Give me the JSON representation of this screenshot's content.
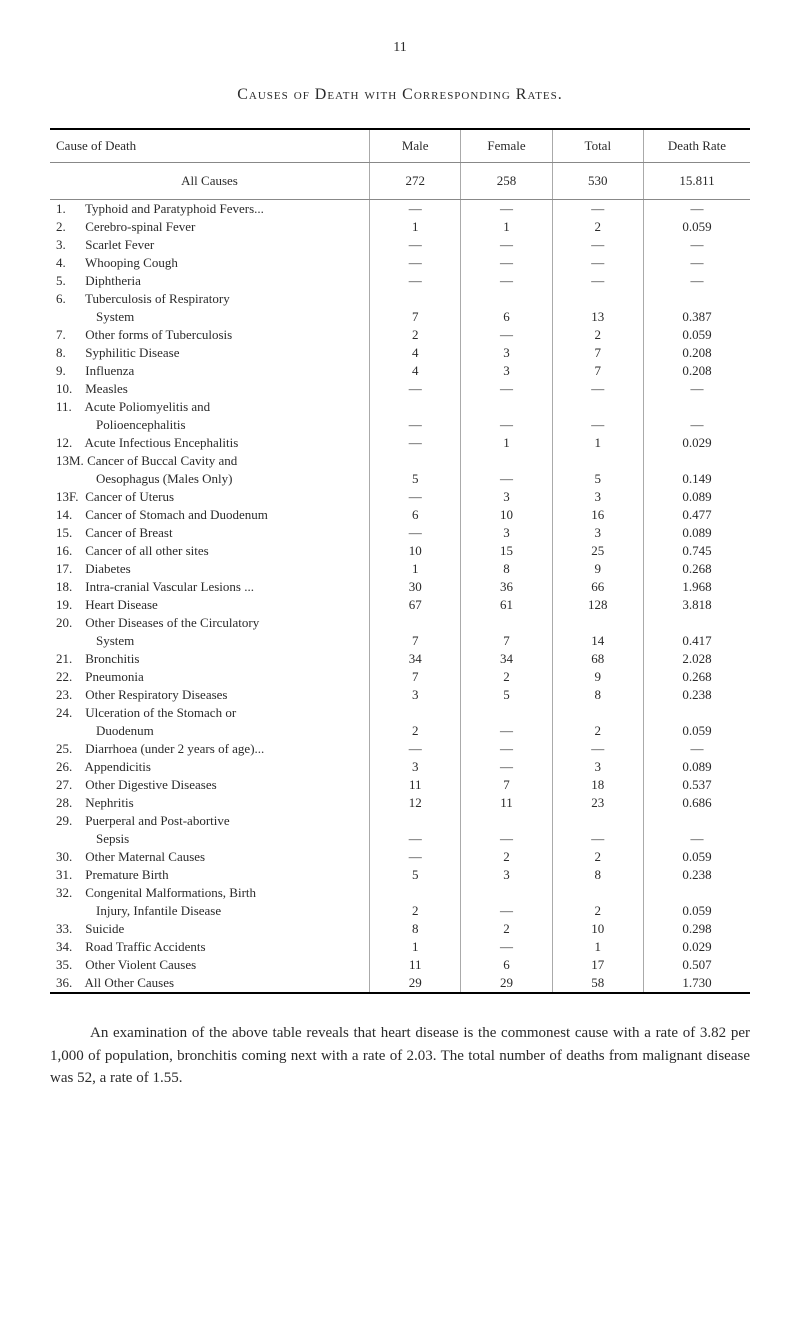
{
  "pageNumber": "11",
  "title": "Causes of Death with Corresponding Rates.",
  "headers": {
    "cause": "Cause of Death",
    "male": "Male",
    "female": "Female",
    "total": "Total",
    "rate": "Death Rate"
  },
  "allCauses": {
    "label": "All Causes",
    "male": "272",
    "female": "258",
    "total": "530",
    "rate": "15.811"
  },
  "rows": [
    {
      "num": "1.",
      "label": "Typhoid and Paratyphoid Fevers...",
      "male": "—",
      "female": "—",
      "total": "—",
      "rate": "—"
    },
    {
      "num": "2.",
      "label": "Cerebro-spinal Fever",
      "male": "1",
      "female": "1",
      "total": "2",
      "rate": "0.059"
    },
    {
      "num": "3.",
      "label": "Scarlet Fever",
      "male": "—",
      "female": "—",
      "total": "—",
      "rate": "—"
    },
    {
      "num": "4.",
      "label": "Whooping Cough",
      "male": "—",
      "female": "—",
      "total": "—",
      "rate": "—"
    },
    {
      "num": "5.",
      "label": "Diphtheria",
      "male": "—",
      "female": "—",
      "total": "—",
      "rate": "—"
    },
    {
      "num": "6.",
      "label": "Tuberculosis of Respiratory",
      "male": "",
      "female": "",
      "total": "",
      "rate": ""
    },
    {
      "num": "",
      "indent": 2,
      "label": "System",
      "male": "7",
      "female": "6",
      "total": "13",
      "rate": "0.387"
    },
    {
      "num": "7.",
      "label": "Other forms of Tuberculosis",
      "male": "2",
      "female": "—",
      "total": "2",
      "rate": "0.059"
    },
    {
      "num": "8.",
      "label": "Syphilitic Disease",
      "male": "4",
      "female": "3",
      "total": "7",
      "rate": "0.208"
    },
    {
      "num": "9.",
      "label": "Influenza",
      "male": "4",
      "female": "3",
      "total": "7",
      "rate": "0.208"
    },
    {
      "num": "10.",
      "label": "Measles",
      "male": "—",
      "female": "—",
      "total": "—",
      "rate": "—"
    },
    {
      "num": "11.",
      "label": "Acute Poliomyelitis and",
      "male": "",
      "female": "",
      "total": "",
      "rate": ""
    },
    {
      "num": "",
      "indent": 2,
      "label": "Polioencephalitis",
      "male": "—",
      "female": "—",
      "total": "—",
      "rate": "—"
    },
    {
      "num": "12.",
      "label": "Acute Infectious Encephalitis",
      "male": "—",
      "female": "1",
      "total": "1",
      "rate": "0.029"
    },
    {
      "num": "13M.",
      "label": "Cancer of Buccal Cavity and",
      "male": "",
      "female": "",
      "total": "",
      "rate": ""
    },
    {
      "num": "",
      "indent": 2,
      "label": "Oesophagus (Males Only)",
      "male": "5",
      "female": "—",
      "total": "5",
      "rate": "0.149"
    },
    {
      "num": "13F.",
      "label": "Cancer of Uterus",
      "male": "—",
      "female": "3",
      "total": "3",
      "rate": "0.089"
    },
    {
      "num": "14.",
      "label": "Cancer of Stomach and Duodenum",
      "male": "6",
      "female": "10",
      "total": "16",
      "rate": "0.477"
    },
    {
      "num": "15.",
      "label": "Cancer of Breast",
      "male": "—",
      "female": "3",
      "total": "3",
      "rate": "0.089"
    },
    {
      "num": "16.",
      "label": "Cancer of all other sites",
      "male": "10",
      "female": "15",
      "total": "25",
      "rate": "0.745"
    },
    {
      "num": "17.",
      "label": "Diabetes",
      "male": "1",
      "female": "8",
      "total": "9",
      "rate": "0.268"
    },
    {
      "num": "18.",
      "label": "Intra-cranial Vascular Lesions ...",
      "male": "30",
      "female": "36",
      "total": "66",
      "rate": "1.968"
    },
    {
      "num": "19.",
      "label": "Heart Disease",
      "male": "67",
      "female": "61",
      "total": "128",
      "rate": "3.818"
    },
    {
      "num": "20.",
      "label": "Other Diseases of the Circulatory",
      "male": "",
      "female": "",
      "total": "",
      "rate": ""
    },
    {
      "num": "",
      "indent": 2,
      "label": "System",
      "male": "7",
      "female": "7",
      "total": "14",
      "rate": "0.417"
    },
    {
      "num": "21.",
      "label": "Bronchitis",
      "male": "34",
      "female": "34",
      "total": "68",
      "rate": "2.028"
    },
    {
      "num": "22.",
      "label": "Pneumonia",
      "male": "7",
      "female": "2",
      "total": "9",
      "rate": "0.268"
    },
    {
      "num": "23.",
      "label": "Other Respiratory Diseases",
      "male": "3",
      "female": "5",
      "total": "8",
      "rate": "0.238"
    },
    {
      "num": "24.",
      "label": "Ulceration of the Stomach or",
      "male": "",
      "female": "",
      "total": "",
      "rate": ""
    },
    {
      "num": "",
      "indent": 2,
      "label": "Duodenum",
      "male": "2",
      "female": "—",
      "total": "2",
      "rate": "0.059"
    },
    {
      "num": "25.",
      "label": "Diarrhoea (under 2 years of age)...",
      "male": "—",
      "female": "—",
      "total": "—",
      "rate": "—"
    },
    {
      "num": "26.",
      "label": "Appendicitis",
      "male": "3",
      "female": "—",
      "total": "3",
      "rate": "0.089"
    },
    {
      "num": "27.",
      "label": "Other Digestive Diseases",
      "male": "11",
      "female": "7",
      "total": "18",
      "rate": "0.537"
    },
    {
      "num": "28.",
      "label": "Nephritis",
      "male": "12",
      "female": "11",
      "total": "23",
      "rate": "0.686"
    },
    {
      "num": "29.",
      "label": "Puerperal and Post-abortive",
      "male": "",
      "female": "",
      "total": "",
      "rate": ""
    },
    {
      "num": "",
      "indent": 2,
      "label": "Sepsis",
      "male": "—",
      "female": "—",
      "total": "—",
      "rate": "—"
    },
    {
      "num": "30.",
      "label": "Other Maternal Causes",
      "male": "—",
      "female": "2",
      "total": "2",
      "rate": "0.059"
    },
    {
      "num": "31.",
      "label": "Premature Birth",
      "male": "5",
      "female": "3",
      "total": "8",
      "rate": "0.238"
    },
    {
      "num": "32.",
      "label": "Congenital Malformations, Birth",
      "male": "",
      "female": "",
      "total": "",
      "rate": ""
    },
    {
      "num": "",
      "indent": 2,
      "label": "Injury, Infantile Disease",
      "male": "2",
      "female": "—",
      "total": "2",
      "rate": "0.059"
    },
    {
      "num": "33.",
      "label": "Suicide",
      "male": "8",
      "female": "2",
      "total": "10",
      "rate": "0.298"
    },
    {
      "num": "34.",
      "label": "Road Traffic Accidents",
      "male": "1",
      "female": "—",
      "total": "1",
      "rate": "0.029"
    },
    {
      "num": "35.",
      "label": "Other Violent Causes",
      "male": "11",
      "female": "6",
      "total": "17",
      "rate": "0.507"
    },
    {
      "num": "36.",
      "label": "All Other Causes",
      "male": "29",
      "female": "29",
      "total": "58",
      "rate": "1.730"
    }
  ],
  "bodyText": "An examination of the above table reveals that heart disease is the commonest cause with a rate of 3.82 per 1,000 of population, bronchitis coming next with a rate of 2.03. The total number of deaths from malignant disease was 52, a rate of 1.55."
}
